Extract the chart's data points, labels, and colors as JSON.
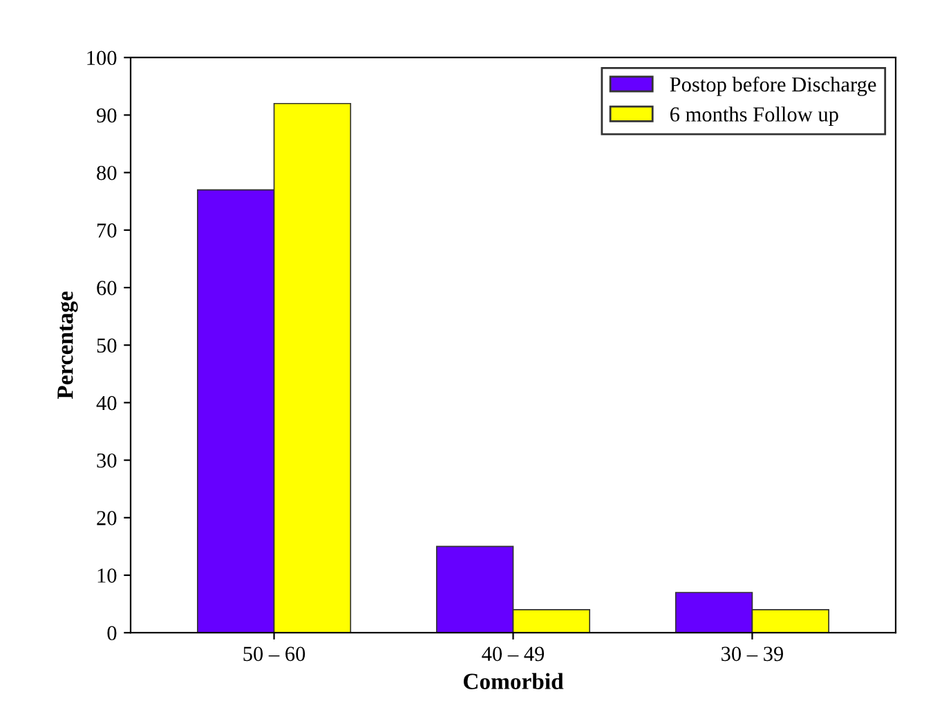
{
  "chart_data": {
    "type": "bar",
    "xlabel": "Comorbid",
    "ylabel": "Percentage",
    "categories": [
      "50 – 60",
      "40 – 49",
      "30 – 39"
    ],
    "series": [
      {
        "name": "Postop before Discharge",
        "color": "#6600ff",
        "values": [
          77,
          15,
          7
        ]
      },
      {
        "name": "6 months Follow up",
        "color": "#ffff00",
        "values": [
          92,
          4,
          4
        ]
      }
    ],
    "ylim": [
      0,
      100
    ],
    "yticks": [
      0,
      10,
      20,
      30,
      40,
      50,
      60,
      70,
      80,
      90,
      100
    ],
    "grid": false,
    "legend": "top right"
  }
}
